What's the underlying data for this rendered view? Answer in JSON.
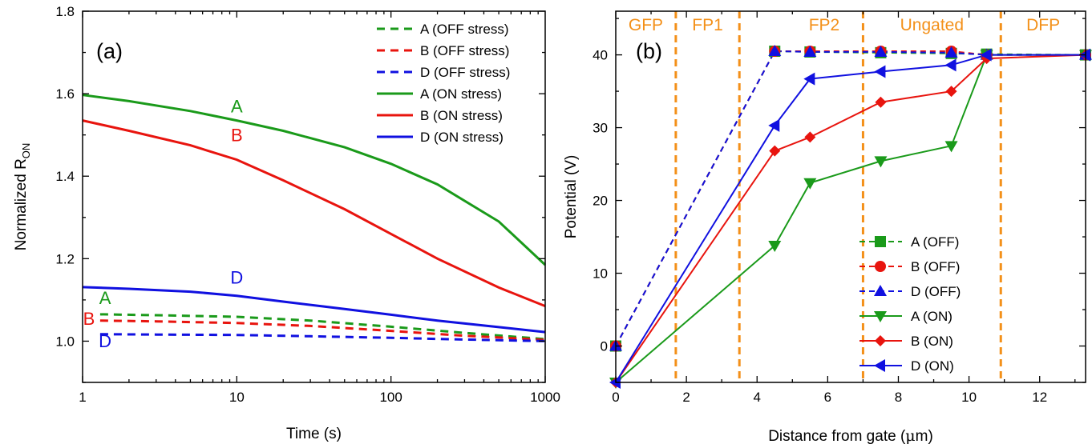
{
  "chart_data": [
    {
      "panel_label": "(a)",
      "type": "line",
      "xscale": "log",
      "xlabel": "Time (s)",
      "ylabel": "Normalized R",
      "ylabel_sub": "ON",
      "xlim": [
        1,
        1000
      ],
      "ylim": [
        0.9,
        1.8
      ],
      "xticks": [
        1,
        10,
        100,
        1000
      ],
      "xtick_labels": [
        "1",
        "10",
        "100",
        "1000"
      ],
      "yticks": [
        1.0,
        1.2,
        1.4,
        1.6,
        1.8
      ],
      "ytick_labels": [
        "1.0",
        "1.2",
        "1.4",
        "1.6",
        "1.8"
      ],
      "grid": false,
      "legend_position": "top-right",
      "series": [
        {
          "name": "A (OFF stress)",
          "color": "#1a9a1a",
          "style": "dashed",
          "x": [
            1.3,
            3,
            10,
            30,
            100,
            300,
            1000
          ],
          "y": [
            1.065,
            1.063,
            1.059,
            1.05,
            1.035,
            1.02,
            1.005
          ]
        },
        {
          "name": "B (OFF stress)",
          "color": "#e8140e",
          "style": "dashed",
          "x": [
            1.3,
            3,
            10,
            30,
            100,
            300,
            1000
          ],
          "y": [
            1.05,
            1.048,
            1.044,
            1.037,
            1.025,
            1.013,
            1.003
          ]
        },
        {
          "name": "D (OFF stress)",
          "color": "#1010e0",
          "style": "dashed",
          "x": [
            1.3,
            3,
            10,
            30,
            100,
            300,
            1000
          ],
          "y": [
            1.017,
            1.016,
            1.015,
            1.012,
            1.008,
            1.004,
            1.0
          ]
        },
        {
          "name": "A (ON stress)",
          "color": "#1a9a1a",
          "style": "solid",
          "x": [
            1,
            2,
            5,
            10,
            20,
            50,
            100,
            200,
            500,
            1000
          ],
          "y": [
            1.597,
            1.582,
            1.558,
            1.535,
            1.51,
            1.47,
            1.43,
            1.38,
            1.29,
            1.185
          ]
        },
        {
          "name": "B (ON stress)",
          "color": "#e8140e",
          "style": "solid",
          "x": [
            1,
            2,
            5,
            10,
            20,
            50,
            100,
            200,
            500,
            1000
          ],
          "y": [
            1.535,
            1.51,
            1.475,
            1.44,
            1.39,
            1.32,
            1.26,
            1.2,
            1.13,
            1.085
          ]
        },
        {
          "name": "D (ON stress)",
          "color": "#1010e0",
          "style": "solid",
          "x": [
            1,
            2,
            5,
            10,
            20,
            50,
            100,
            200,
            500,
            1000
          ],
          "y": [
            1.131,
            1.127,
            1.12,
            1.11,
            1.096,
            1.078,
            1.064,
            1.05,
            1.034,
            1.022
          ]
        }
      ],
      "annotations": [
        {
          "text": "A",
          "color": "#1a9a1a",
          "x": 10,
          "y": 1.555
        },
        {
          "text": "B",
          "color": "#e8140e",
          "x": 10,
          "y": 1.485
        },
        {
          "text": "D",
          "color": "#1010e0",
          "x": 10,
          "y": 1.14
        },
        {
          "text": "A",
          "color": "#1a9a1a",
          "x": 1.4,
          "y": 1.09
        },
        {
          "text": "B",
          "color": "#e8140e",
          "x": 1.1,
          "y": 1.04
        },
        {
          "text": "D",
          "color": "#1010e0",
          "x": 1.4,
          "y": 0.985
        }
      ]
    },
    {
      "panel_label": "(b)",
      "type": "line",
      "xlabel": "Distance from gate (",
      "xlabel_symbol": "μ",
      "xlabel_tail": "m)",
      "ylabel": "Potential (V)",
      "xlim": [
        0,
        13.3
      ],
      "ylim": [
        -5,
        46
      ],
      "xticks": [
        0,
        2,
        4,
        6,
        8,
        10,
        12
      ],
      "xtick_labels": [
        "0",
        "2",
        "4",
        "6",
        "8",
        "10",
        "12"
      ],
      "yticks": [
        0,
        10,
        20,
        30,
        40
      ],
      "ytick_labels": [
        "0",
        "10",
        "20",
        "30",
        "40"
      ],
      "grid": false,
      "legend_position": "bottom-right",
      "region_color": "#f39019",
      "region_boundaries": [
        1.7,
        3.5,
        7.0,
        10.9
      ],
      "regions": [
        {
          "label": "GFP",
          "x": 0.85
        },
        {
          "label": "FP1",
          "x": 2.6
        },
        {
          "label": "FP2",
          "x": 5.9
        },
        {
          "label": "Ungated",
          "x": 8.95
        },
        {
          "label": "DFP",
          "x": 12.1
        }
      ],
      "series": [
        {
          "name": "A (OFF)",
          "color": "#1a9a1a",
          "style": "dashed",
          "marker": "square",
          "x": [
            0,
            4.5,
            5.5,
            7.5,
            9.5,
            10.5,
            13.3
          ],
          "y": [
            0,
            40.5,
            40.4,
            40.3,
            40.2,
            40.1,
            40.0
          ]
        },
        {
          "name": "B (OFF)",
          "color": "#e8140e",
          "style": "dashed",
          "marker": "circle",
          "x": [
            0,
            4.5,
            5.5,
            7.5,
            9.5,
            10.5,
            13.3
          ],
          "y": [
            0,
            40.5,
            40.5,
            40.5,
            40.5,
            40.0,
            40.0
          ]
        },
        {
          "name": "D (OFF)",
          "color": "#1010e0",
          "style": "dashed",
          "marker": "triangle-up",
          "x": [
            0,
            4.5,
            5.5,
            7.5,
            9.5,
            10.5,
            13.3
          ],
          "y": [
            0,
            40.5,
            40.4,
            40.4,
            40.3,
            40.0,
            40.0
          ]
        },
        {
          "name": "A (ON)",
          "color": "#1a9a1a",
          "style": "solid",
          "marker": "triangle-down",
          "x": [
            0,
            4.5,
            5.5,
            7.5,
            9.5,
            10.5,
            13.3
          ],
          "y": [
            -5,
            13.8,
            22.4,
            25.4,
            27.5,
            40.0,
            40.0
          ]
        },
        {
          "name": "B (ON)",
          "color": "#e8140e",
          "style": "solid",
          "marker": "diamond",
          "x": [
            0,
            4.5,
            5.5,
            7.5,
            9.5,
            10.5,
            13.3
          ],
          "y": [
            -5,
            26.8,
            28.7,
            33.5,
            35.0,
            39.5,
            40.0
          ]
        },
        {
          "name": "D (ON)",
          "color": "#1010e0",
          "style": "solid",
          "marker": "triangle-left",
          "x": [
            0,
            4.5,
            5.5,
            7.5,
            9.5,
            10.5,
            13.3
          ],
          "y": [
            -5,
            30.3,
            36.7,
            37.7,
            38.6,
            40.0,
            40.0
          ]
        }
      ]
    }
  ]
}
